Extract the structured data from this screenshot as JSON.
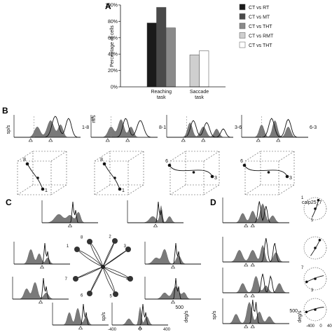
{
  "panels": {
    "a": "A",
    "b": "B",
    "c": "C",
    "d": "D"
  },
  "chart_data": {
    "type": "bar",
    "title": "",
    "ylabel": "Percentage of cells",
    "ylim": [
      0,
      100
    ],
    "y_ticks": [
      "0%",
      "20%",
      "40%",
      "60%",
      "80%",
      "100%"
    ],
    "groups": [
      {
        "label_line1": "Reaching",
        "label_line2": "task",
        "keys": [
          "CT vs RT",
          "CT vs MT",
          "CT vs THT"
        ],
        "values": [
          78,
          97,
          72
        ]
      },
      {
        "label_line1": "Saccade",
        "label_line2": "task",
        "keys": [
          "CT vs RMT",
          "CT vs THT (saccade)"
        ],
        "values": [
          39,
          44
        ]
      }
    ],
    "legend_position": "right",
    "legend": [
      {
        "label": "CT vs RT",
        "color": "#1a1a1a"
      },
      {
        "label": "CT vs MT",
        "color": "#4a4a4a"
      },
      {
        "label": "CT vs THT",
        "color": "#8a8a8a"
      },
      {
        "label": "CT vs RMT",
        "color": "#cfcfcf"
      },
      {
        "label": "CT vs THT",
        "color": "#ffffff"
      }
    ]
  },
  "panel_b": {
    "y_left": "sp/s",
    "y_right": "m/s",
    "y_right_value": "1",
    "conditions": [
      "1-8",
      "8-1",
      "3-6",
      "6-3"
    ],
    "cube_points": [
      {
        "start": "8",
        "end": "1"
      },
      {
        "start": "8",
        "end": "1"
      },
      {
        "start": "6",
        "end": "3"
      },
      {
        "start": "6",
        "end": "3"
      }
    ],
    "cell_id": "calp25_7"
  },
  "panel_c": {
    "y_left": "sp/s",
    "y_right": "deg/s",
    "scale_value": "500",
    "x_ticks": [
      "-400",
      "0",
      "400"
    ],
    "target_numbers": [
      "1",
      "2",
      "3",
      "4",
      "5",
      "6",
      "7",
      "8"
    ]
  },
  "panel_d": {
    "y_left": "sp/s",
    "y_right": "deg/s",
    "scale_value": "500",
    "x_ticks": [
      "-400",
      "0",
      "400"
    ],
    "row_labels": [
      {
        "a": "1",
        "b": "5"
      },
      {
        "a": "",
        "b": ""
      },
      {
        "a": "7",
        "b": "3"
      },
      {
        "a": "",
        "b": ""
      }
    ]
  }
}
